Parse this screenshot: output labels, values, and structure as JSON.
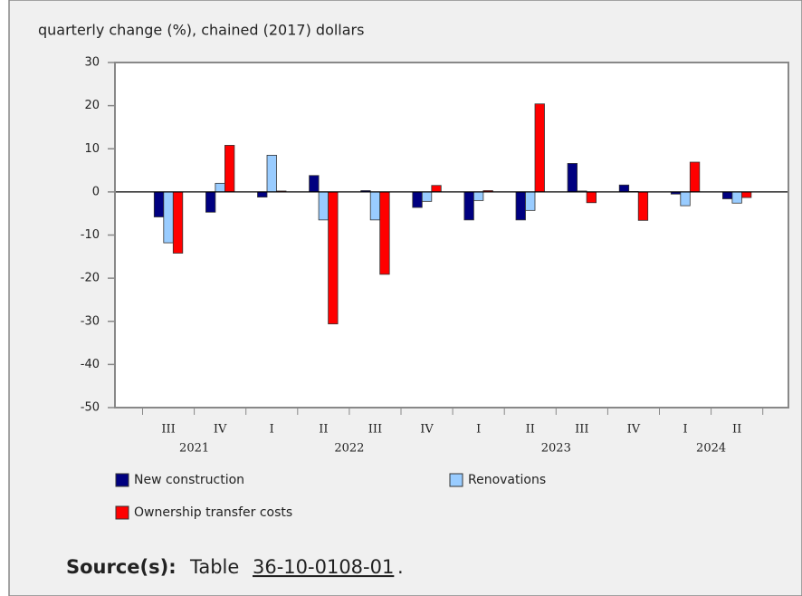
{
  "chart_data": {
    "type": "bar",
    "axis_title": "quarterly change (%), chained (2017) dollars",
    "categories": [
      "III",
      "IV",
      "I",
      "II",
      "III",
      "IV",
      "I",
      "II",
      "III",
      "IV",
      "I",
      "II"
    ],
    "year_groups": [
      {
        "label": "2021",
        "span": 2
      },
      {
        "label": "2022",
        "span": 4
      },
      {
        "label": "2023",
        "span": 4
      },
      {
        "label": "2024",
        "span": 2
      }
    ],
    "series": [
      {
        "name": "New construction",
        "color": "#000080",
        "values": [
          -5.8,
          -4.7,
          -1.2,
          3.8,
          0.3,
          -3.6,
          -6.5,
          -6.5,
          6.6,
          1.6,
          -0.5,
          -1.6
        ]
      },
      {
        "name": "Renovations",
        "color": "#99ccff",
        "values": [
          -11.8,
          2.0,
          8.5,
          -6.5,
          -6.5,
          -2.2,
          -2.0,
          -4.3,
          0.2,
          0.1,
          -3.2,
          -2.6
        ]
      },
      {
        "name": "Ownership transfer costs",
        "color": "#ff0000",
        "values": [
          -14.2,
          10.8,
          0.2,
          -30.6,
          -19.1,
          1.5,
          0.3,
          20.4,
          -2.5,
          -6.6,
          6.9,
          -1.3
        ]
      }
    ],
    "ylim": [
      -50,
      30
    ],
    "yticks": [
      -50,
      -40,
      -30,
      -20,
      -10,
      0,
      10,
      20,
      30
    ],
    "grid": false
  },
  "source": {
    "label": "Source(s):",
    "text": "Table",
    "link": "36-10-0108-01",
    "suffix": "."
  }
}
